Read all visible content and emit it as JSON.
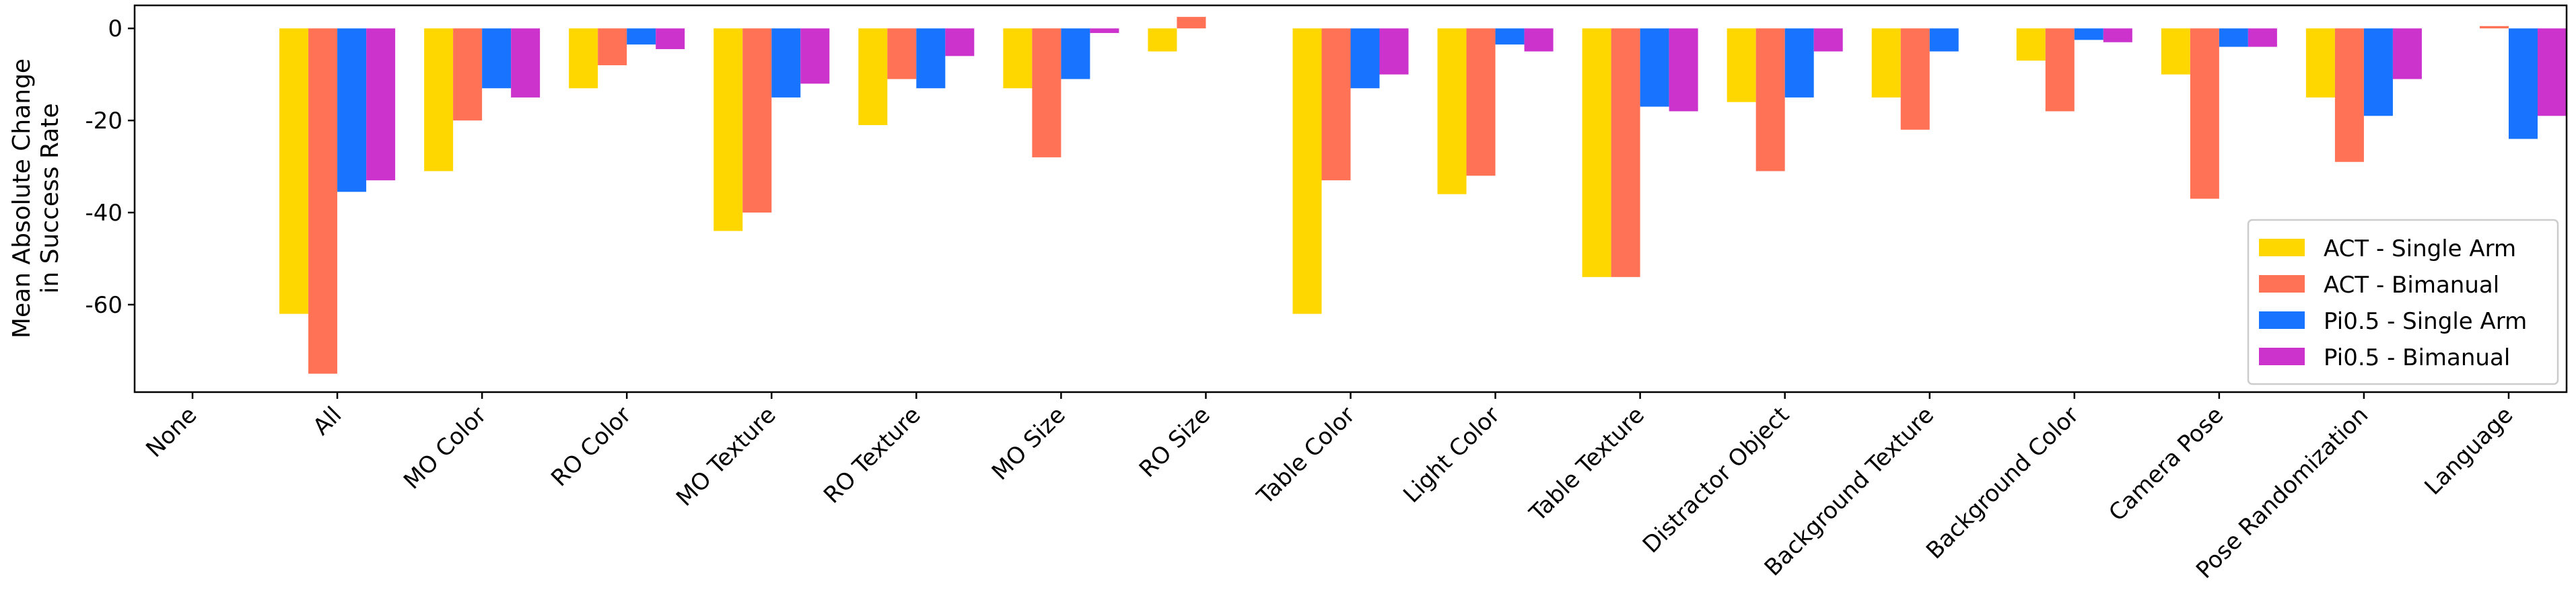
{
  "chart_data": {
    "type": "bar",
    "categories": [
      "None",
      "All",
      "MO Color",
      "RO Color",
      "MO Texture",
      "RO Texture",
      "MO Size",
      "RO Size",
      "Table Color",
      "Light Color",
      "Table Texture",
      "Distractor Object",
      "Background Texture",
      "Background Color",
      "Camera Pose",
      "Pose Randomization",
      "Language"
    ],
    "series": [
      {
        "name": "ACT - Single Arm",
        "color": "#FFD700",
        "values": [
          0,
          -62,
          -31,
          -13,
          -44,
          -21,
          -13,
          -5,
          -62,
          -36,
          -54,
          -16,
          -15,
          -7,
          -10,
          -15,
          0
        ]
      },
      {
        "name": "ACT - Bimanual",
        "color": "#FF7256",
        "values": [
          0,
          -75,
          -20,
          -8,
          -40,
          -11,
          -28,
          2.5,
          -33,
          -32,
          -54,
          -31,
          -22,
          -18,
          -37,
          -29,
          0.5
        ]
      },
      {
        "name": "Pi0.5 - Single Arm",
        "color": "#1874FF",
        "values": [
          0,
          -35.5,
          -13,
          -3.5,
          -15,
          -13,
          -11,
          0,
          -13,
          -3.5,
          -17,
          -15,
          -5,
          -2.5,
          -4,
          -19,
          -24
        ]
      },
      {
        "name": "Pi0.5 - Bimanual",
        "color": "#CC33CC",
        "values": [
          0,
          -33,
          -15,
          -4.5,
          -12,
          -6,
          -1,
          0,
          -10,
          -5,
          -18,
          -5,
          0,
          -3,
          -4,
          -11,
          -19
        ]
      }
    ],
    "xlabel": "",
    "ylabel": [
      "Mean Absolute Change",
      "in Success Rate"
    ],
    "ylim": [
      -79,
      5
    ],
    "yticks": [
      0,
      -20,
      -40,
      -60
    ],
    "grid": false,
    "legend_position": "lower-right"
  }
}
